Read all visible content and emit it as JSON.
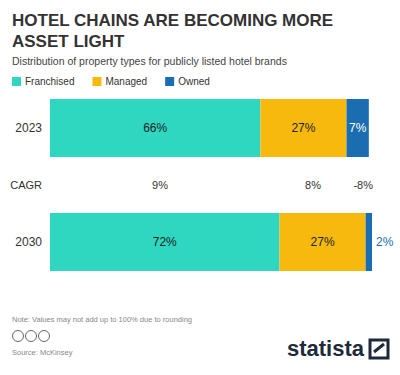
{
  "chart_data": {
    "type": "bar",
    "title": "HOTEL CHAINS ARE BECOMING MORE ASSET LIGHT",
    "subtitle": "Distribution of property types for publicly listed hotel brands",
    "orientation": "horizontal",
    "stacked": true,
    "data_labels": true,
    "tick_labels": "y",
    "legend": "top",
    "categories": [
      "2023",
      "2030"
    ],
    "xlim": [
      0,
      101
    ],
    "series": [
      {
        "name": "Franchised",
        "color": "#2fd6c0",
        "values": [
          66,
          72
        ],
        "value_labels": [
          "66%",
          "72%"
        ]
      },
      {
        "name": "Managed",
        "color": "#f7b90e",
        "values": [
          27,
          27
        ],
        "value_labels": [
          "27%",
          "27%"
        ]
      },
      {
        "name": "Owned",
        "color": "#1b6db1",
        "values": [
          7,
          2
        ],
        "value_labels": [
          "7%",
          "2%"
        ]
      }
    ],
    "cagr": {
      "label": "CAGR",
      "values": [
        9,
        8,
        -8
      ],
      "value_labels": [
        "9%",
        "8%",
        "-8%"
      ]
    },
    "note": "Note: Values may not add up to 100% due to rounding",
    "source": "Source: McKinsey",
    "logo": "statista"
  }
}
